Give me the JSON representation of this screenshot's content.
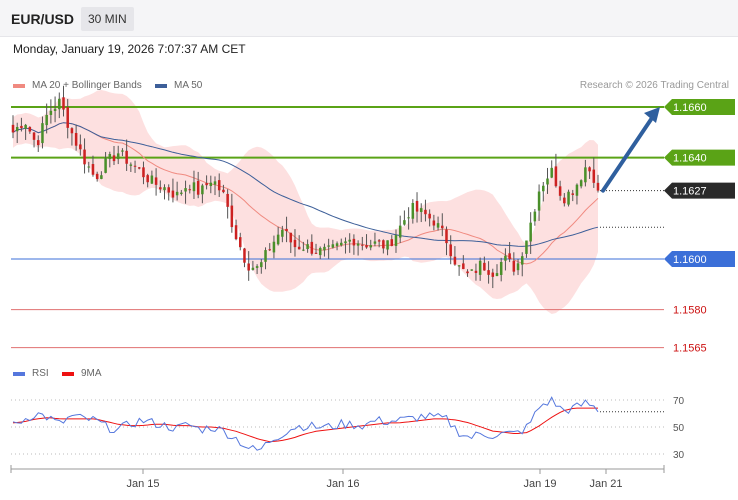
{
  "header": {
    "symbol": "EUR/USD",
    "timeframe": "30 MIN",
    "datetime": "Monday, January 19, 2026 7:07:37 AM CET",
    "credit": "Research © 2026 Trading Central"
  },
  "legend": {
    "ma20": {
      "label": "MA 20 + Bollinger Bands",
      "color": "#f08a80"
    },
    "ma50": {
      "label": "MA 50",
      "color": "#3d5f99"
    },
    "rsi": {
      "label": "RSI",
      "color": "#5577dd"
    },
    "rsi_ma": {
      "label": "9MA",
      "color": "#ee1111"
    }
  },
  "chart_data": [
    {
      "type": "candlestick",
      "ylim": [
        1.1545,
        1.1675
      ],
      "current_price": "1.1627",
      "current_value": 1.1627,
      "x_ticks": [
        "Jan 15",
        "Jan 16",
        "Jan 19",
        "Jan 21"
      ],
      "levels": [
        {
          "value": 1.166,
          "label": "1.1660",
          "kind": "resistance",
          "color": "#5aa316"
        },
        {
          "value": 1.164,
          "label": "1.1640",
          "kind": "resistance",
          "color": "#5aa316"
        },
        {
          "value": 1.16,
          "label": "1.1600",
          "kind": "pivot",
          "color": "#3b6fd8"
        },
        {
          "value": 1.158,
          "label": "1.1580",
          "kind": "support",
          "color": "#e07070"
        },
        {
          "value": 1.1565,
          "label": "1.1565",
          "kind": "support",
          "color": "#e07070"
        }
      ],
      "forecast_arrow": {
        "from": 1.1627,
        "to": 1.166,
        "color": "#2f5f9e"
      },
      "colors": {
        "up": "#4a8f2a",
        "down": "#cc2222",
        "band": "#fde0e0"
      },
      "close_anchors": [
        1.165,
        1.1655,
        1.1645,
        1.1658,
        1.1662,
        1.165,
        1.164,
        1.1632,
        1.1638,
        1.1642,
        1.1638,
        1.1634,
        1.163,
        1.1628,
        1.1625,
        1.163,
        1.1626,
        1.1632,
        1.1625,
        1.161,
        1.1598,
        1.1596,
        1.1605,
        1.1612,
        1.1605,
        1.1605,
        1.1603,
        1.1603,
        1.1605,
        1.1608,
        1.1606,
        1.1606,
        1.1605,
        1.1612,
        1.162,
        1.1618,
        1.1615,
        1.1608,
        1.1597,
        1.1593,
        1.1598,
        1.1595,
        1.16,
        1.1596,
        1.161,
        1.1628,
        1.1635,
        1.1624,
        1.1628,
        1.1637,
        1.163
      ]
    },
    {
      "type": "line",
      "name": "RSI",
      "ylim": [
        25,
        80
      ],
      "y_ticks": [
        70,
        50,
        30
      ],
      "rsi_anchors": [
        51,
        56,
        60,
        57,
        52,
        58,
        56,
        55,
        50,
        48,
        52,
        55,
        53,
        51,
        49,
        52,
        48,
        50,
        47,
        42,
        35,
        32,
        40,
        45,
        50,
        51,
        50,
        50,
        52,
        52,
        51,
        55,
        54,
        55,
        56,
        58,
        57,
        56,
        47,
        42,
        45,
        44,
        45,
        45,
        50,
        65,
        70,
        62,
        64,
        68,
        63
      ],
      "ma_anchors": [
        53,
        54,
        56,
        57,
        56,
        56,
        56,
        56,
        54,
        52,
        51,
        51,
        52,
        52,
        51,
        51,
        50,
        50,
        49,
        47,
        44,
        41,
        39,
        40,
        42,
        45,
        47,
        48,
        49,
        50,
        51,
        52,
        53,
        53,
        54,
        55,
        56,
        56,
        55,
        53,
        50,
        47,
        46,
        45,
        46,
        51,
        57,
        62,
        64,
        64,
        64
      ]
    }
  ]
}
